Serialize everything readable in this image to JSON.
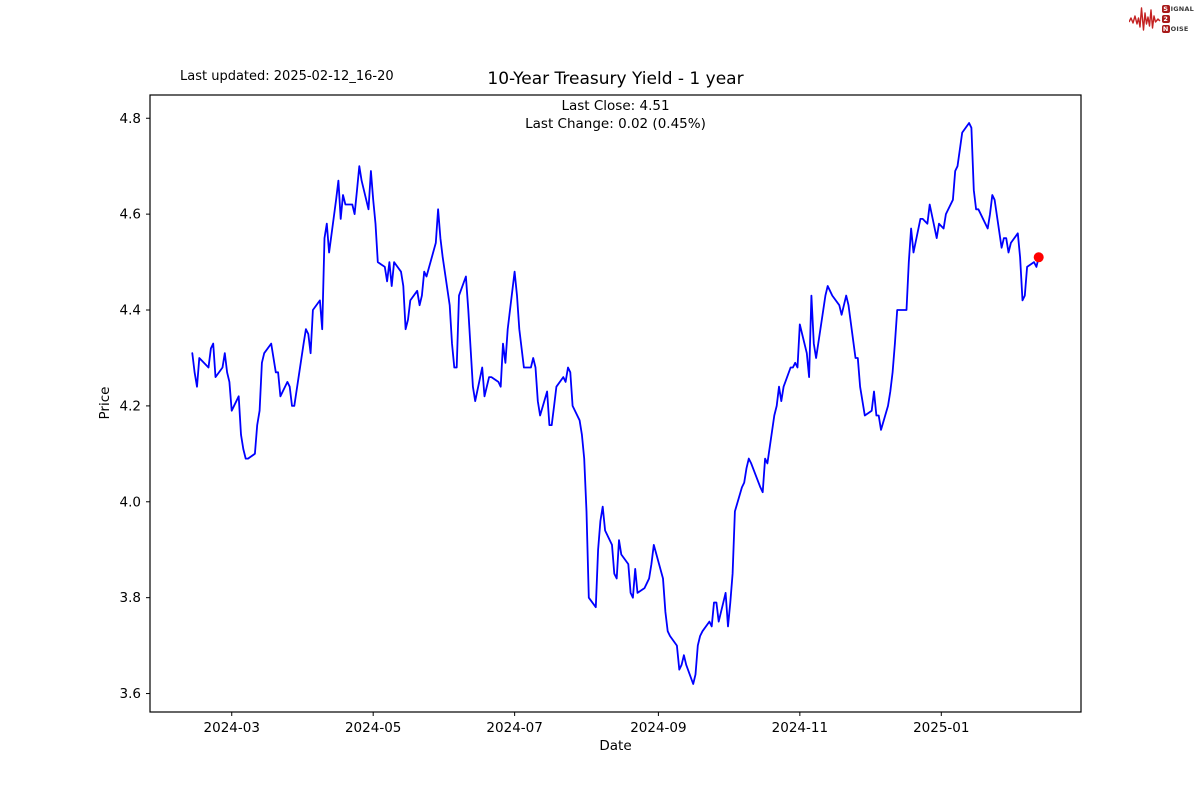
{
  "page": {
    "background": "#ffffff"
  },
  "header": {
    "last_updated": "Last updated: 2025-02-12_16-20",
    "logo": {
      "word1_initial": "S",
      "word1_rest": "IGNAL",
      "word2_initial": "2",
      "word2_rest": "",
      "word3_initial": "N",
      "word3_rest": "OISE",
      "waveform_color": "#c42222",
      "box_color": "#a81a1a"
    }
  },
  "chart_data": {
    "type": "line",
    "title": "10-Year Treasury Yield - 1 year",
    "annotation_line1": "Last Close: 4.51",
    "annotation_line2": "Last Change: 0.02 (0.45%)",
    "xlabel": "Date",
    "ylabel": "Price",
    "last_close": 4.51,
    "last_change": 0.02,
    "last_change_pct": "0.45%",
    "line_color": "#0000ff",
    "marker_color": "#ff0000",
    "grid": false,
    "legend": "none",
    "ylim": [
      3.5615,
      4.8485
    ],
    "x_margin_frac": 0.05,
    "y_margin_frac": 0.05,
    "y_ticks": [
      3.6,
      3.8,
      4.0,
      4.2,
      4.4,
      4.6,
      4.8
    ],
    "x_tick_labels": [
      "2024-03",
      "2024-05",
      "2024-07",
      "2024-09",
      "2024-11",
      "2025-01"
    ],
    "x_tick_dates": [
      "2024-03-01",
      "2024-05-01",
      "2024-07-01",
      "2024-09-01",
      "2024-11-01",
      "2025-01-01"
    ],
    "dates": [
      "2024-02-13",
      "2024-02-14",
      "2024-02-15",
      "2024-02-16",
      "2024-02-20",
      "2024-02-21",
      "2024-02-22",
      "2024-02-23",
      "2024-02-26",
      "2024-02-27",
      "2024-02-28",
      "2024-02-29",
      "2024-03-01",
      "2024-03-04",
      "2024-03-05",
      "2024-03-06",
      "2024-03-07",
      "2024-03-08",
      "2024-03-11",
      "2024-03-12",
      "2024-03-13",
      "2024-03-14",
      "2024-03-15",
      "2024-03-18",
      "2024-03-19",
      "2024-03-20",
      "2024-03-21",
      "2024-03-22",
      "2024-03-25",
      "2024-03-26",
      "2024-03-27",
      "2024-03-28",
      "2024-04-01",
      "2024-04-02",
      "2024-04-03",
      "2024-04-04",
      "2024-04-05",
      "2024-04-08",
      "2024-04-09",
      "2024-04-10",
      "2024-04-11",
      "2024-04-12",
      "2024-04-15",
      "2024-04-16",
      "2024-04-17",
      "2024-04-18",
      "2024-04-19",
      "2024-04-22",
      "2024-04-23",
      "2024-04-24",
      "2024-04-25",
      "2024-04-26",
      "2024-04-29",
      "2024-04-30",
      "2024-05-01",
      "2024-05-02",
      "2024-05-03",
      "2024-05-06",
      "2024-05-07",
      "2024-05-08",
      "2024-05-09",
      "2024-05-10",
      "2024-05-13",
      "2024-05-14",
      "2024-05-15",
      "2024-05-16",
      "2024-05-17",
      "2024-05-20",
      "2024-05-21",
      "2024-05-22",
      "2024-05-23",
      "2024-05-24",
      "2024-05-28",
      "2024-05-29",
      "2024-05-30",
      "2024-05-31",
      "2024-06-03",
      "2024-06-04",
      "2024-06-05",
      "2024-06-06",
      "2024-06-07",
      "2024-06-10",
      "2024-06-11",
      "2024-06-12",
      "2024-06-13",
      "2024-06-14",
      "2024-06-17",
      "2024-06-18",
      "2024-06-20",
      "2024-06-21",
      "2024-06-24",
      "2024-06-25",
      "2024-06-26",
      "2024-06-27",
      "2024-06-28",
      "2024-07-01",
      "2024-07-02",
      "2024-07-03",
      "2024-07-05",
      "2024-07-08",
      "2024-07-09",
      "2024-07-10",
      "2024-07-11",
      "2024-07-12",
      "2024-07-15",
      "2024-07-16",
      "2024-07-17",
      "2024-07-18",
      "2024-07-19",
      "2024-07-22",
      "2024-07-23",
      "2024-07-24",
      "2024-07-25",
      "2024-07-26",
      "2024-07-29",
      "2024-07-30",
      "2024-07-31",
      "2024-08-01",
      "2024-08-02",
      "2024-08-05",
      "2024-08-06",
      "2024-08-07",
      "2024-08-08",
      "2024-08-09",
      "2024-08-12",
      "2024-08-13",
      "2024-08-14",
      "2024-08-15",
      "2024-08-16",
      "2024-08-19",
      "2024-08-20",
      "2024-08-21",
      "2024-08-22",
      "2024-08-23",
      "2024-08-26",
      "2024-08-27",
      "2024-08-28",
      "2024-08-29",
      "2024-08-30",
      "2024-09-03",
      "2024-09-04",
      "2024-09-05",
      "2024-09-06",
      "2024-09-09",
      "2024-09-10",
      "2024-09-11",
      "2024-09-12",
      "2024-09-13",
      "2024-09-16",
      "2024-09-17",
      "2024-09-18",
      "2024-09-19",
      "2024-09-20",
      "2024-09-23",
      "2024-09-24",
      "2024-09-25",
      "2024-09-26",
      "2024-09-27",
      "2024-09-30",
      "2024-10-01",
      "2024-10-02",
      "2024-10-03",
      "2024-10-04",
      "2024-10-07",
      "2024-10-08",
      "2024-10-09",
      "2024-10-10",
      "2024-10-11",
      "2024-10-15",
      "2024-10-16",
      "2024-10-17",
      "2024-10-18",
      "2024-10-21",
      "2024-10-22",
      "2024-10-23",
      "2024-10-24",
      "2024-10-25",
      "2024-10-28",
      "2024-10-29",
      "2024-10-30",
      "2024-10-31",
      "2024-11-01",
      "2024-11-04",
      "2024-11-05",
      "2024-11-06",
      "2024-11-07",
      "2024-11-08",
      "2024-11-12",
      "2024-11-13",
      "2024-11-14",
      "2024-11-15",
      "2024-11-18",
      "2024-11-19",
      "2024-11-20",
      "2024-11-21",
      "2024-11-22",
      "2024-11-25",
      "2024-11-26",
      "2024-11-27",
      "2024-11-29",
      "2024-12-02",
      "2024-12-03",
      "2024-12-04",
      "2024-12-05",
      "2024-12-06",
      "2024-12-09",
      "2024-12-10",
      "2024-12-11",
      "2024-12-12",
      "2024-12-13",
      "2024-12-16",
      "2024-12-17",
      "2024-12-18",
      "2024-12-19",
      "2024-12-20",
      "2024-12-23",
      "2024-12-24",
      "2024-12-26",
      "2024-12-27",
      "2024-12-30",
      "2024-12-31",
      "2025-01-02",
      "2025-01-03",
      "2025-01-06",
      "2025-01-07",
      "2025-01-08",
      "2025-01-10",
      "2025-01-13",
      "2025-01-14",
      "2025-01-15",
      "2025-01-16",
      "2025-01-17",
      "2025-01-21",
      "2025-01-22",
      "2025-01-23",
      "2025-01-24",
      "2025-01-27",
      "2025-01-28",
      "2025-01-29",
      "2025-01-30",
      "2025-01-31",
      "2025-02-03",
      "2025-02-04",
      "2025-02-05",
      "2025-02-06",
      "2025-02-07",
      "2025-02-10",
      "2025-02-11",
      "2025-02-12"
    ],
    "values": [
      4.31,
      4.27,
      4.24,
      4.3,
      4.28,
      4.32,
      4.33,
      4.26,
      4.28,
      4.31,
      4.27,
      4.25,
      4.19,
      4.22,
      4.14,
      4.11,
      4.09,
      4.09,
      4.1,
      4.16,
      4.19,
      4.29,
      4.31,
      4.33,
      4.3,
      4.27,
      4.27,
      4.22,
      4.25,
      4.24,
      4.2,
      4.2,
      4.33,
      4.36,
      4.35,
      4.31,
      4.4,
      4.42,
      4.36,
      4.55,
      4.58,
      4.52,
      4.63,
      4.67,
      4.59,
      4.64,
      4.62,
      4.62,
      4.6,
      4.65,
      4.7,
      4.67,
      4.61,
      4.69,
      4.63,
      4.58,
      4.5,
      4.49,
      4.46,
      4.5,
      4.45,
      4.5,
      4.48,
      4.45,
      4.36,
      4.38,
      4.42,
      4.44,
      4.41,
      4.43,
      4.48,
      4.47,
      4.54,
      4.61,
      4.55,
      4.51,
      4.41,
      4.33,
      4.28,
      4.28,
      4.43,
      4.47,
      4.4,
      4.32,
      4.24,
      4.21,
      4.28,
      4.22,
      4.26,
      4.26,
      4.25,
      4.24,
      4.33,
      4.29,
      4.36,
      4.48,
      4.43,
      4.36,
      4.28,
      4.28,
      4.3,
      4.28,
      4.21,
      4.18,
      4.23,
      4.16,
      4.16,
      4.2,
      4.24,
      4.26,
      4.25,
      4.28,
      4.27,
      4.2,
      4.17,
      4.14,
      4.09,
      3.98,
      3.8,
      3.78,
      3.9,
      3.96,
      3.99,
      3.94,
      3.91,
      3.85,
      3.84,
      3.92,
      3.89,
      3.87,
      3.81,
      3.8,
      3.86,
      3.81,
      3.82,
      3.83,
      3.84,
      3.87,
      3.91,
      3.84,
      3.77,
      3.73,
      3.72,
      3.7,
      3.65,
      3.66,
      3.68,
      3.66,
      3.62,
      3.64,
      3.7,
      3.72,
      3.73,
      3.75,
      3.74,
      3.79,
      3.79,
      3.75,
      3.81,
      3.74,
      3.79,
      3.85,
      3.98,
      4.03,
      4.04,
      4.07,
      4.09,
      4.08,
      4.03,
      4.02,
      4.09,
      4.08,
      4.18,
      4.2,
      4.24,
      4.21,
      4.24,
      4.28,
      4.28,
      4.29,
      4.28,
      4.37,
      4.31,
      4.26,
      4.43,
      4.33,
      4.3,
      4.43,
      4.45,
      4.44,
      4.43,
      4.41,
      4.39,
      4.41,
      4.43,
      4.41,
      4.3,
      4.3,
      4.24,
      4.18,
      4.19,
      4.23,
      4.18,
      4.18,
      4.15,
      4.2,
      4.23,
      4.27,
      4.33,
      4.4,
      4.4,
      4.4,
      4.5,
      4.57,
      4.52,
      4.59,
      4.59,
      4.58,
      4.62,
      4.55,
      4.58,
      4.57,
      4.6,
      4.63,
      4.69,
      4.7,
      4.77,
      4.79,
      4.78,
      4.65,
      4.61,
      4.61,
      4.57,
      4.6,
      4.64,
      4.63,
      4.53,
      4.55,
      4.55,
      4.52,
      4.54,
      4.56,
      4.51,
      4.42,
      4.43,
      4.49,
      4.5,
      4.49,
      4.51
    ]
  }
}
